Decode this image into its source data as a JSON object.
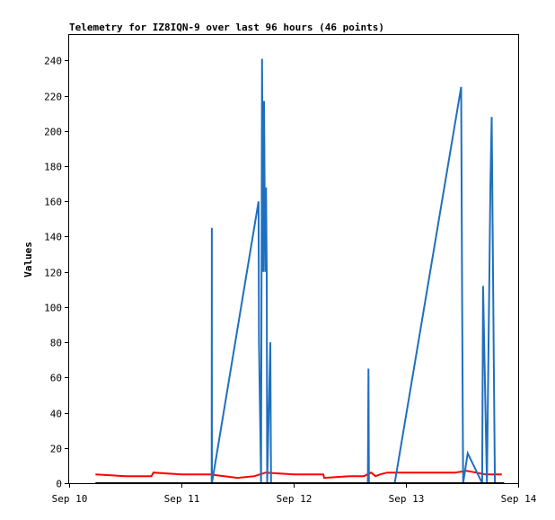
{
  "chart_data": {
    "type": "line",
    "title": "Telemetry for IZ8IQN-9 over last 96 hours (46 points)",
    "xlabel": "",
    "ylabel": "Values",
    "x_ticks": [
      "Sep 10",
      "Sep 11",
      "Sep 12",
      "Sep 13",
      "Sep 14"
    ],
    "xlim": [
      "2023-09-10 00:00",
      "2023-09-14 00:00"
    ],
    "ylim": [
      0,
      255
    ],
    "y_ticks": [
      0,
      20,
      40,
      60,
      80,
      100,
      120,
      140,
      160,
      180,
      200,
      220,
      240
    ],
    "grid": false,
    "series": [
      {
        "color": "#ff0000",
        "x": [
          "2023-09-10 05:37",
          "2023-09-10 12:00",
          "2023-09-10 17:36",
          "2023-09-10 18:00",
          "2023-09-11 00:00",
          "2023-09-11 06:00",
          "2023-09-11 12:00",
          "2023-09-11 15:36",
          "2023-09-11 18:00",
          "2023-09-12 00:00",
          "2023-09-12 03:00",
          "2023-09-12 06:20",
          "2023-09-12 06:30",
          "2023-09-12 12:00",
          "2023-09-12 15:00",
          "2023-09-12 16:34",
          "2023-09-12 17:30",
          "2023-09-12 18:30",
          "2023-09-12 20:00",
          "2023-09-13 00:00",
          "2023-09-13 06:00",
          "2023-09-13 10:30",
          "2023-09-13 13:00",
          "2023-09-13 15:00",
          "2023-09-13 17:00",
          "2023-09-13 20:30"
        ],
        "values": [
          5,
          4,
          4,
          6,
          5,
          5,
          3,
          4,
          6,
          5,
          5,
          5,
          3,
          4,
          4,
          6,
          4,
          5,
          6,
          6,
          6,
          6,
          7,
          6,
          5,
          5
        ]
      },
      {
        "color": "#1f6fbf",
        "x": [
          "2023-09-11 06:28",
          "2023-09-11 06:30",
          "2023-09-11 06:31",
          "2023-09-11 06:32",
          "2023-09-11 16:29",
          "2023-09-11 16:35",
          "2023-09-11 17:02",
          "2023-09-11 17:15",
          "2023-09-11 17:28",
          "2023-09-11 17:40",
          "2023-09-11 17:55",
          "2023-09-11 18:05",
          "2023-09-11 18:14",
          "2023-09-11 18:20",
          "2023-09-11 19:00",
          "2023-09-11 19:10",
          "2023-09-12 15:52",
          "2023-09-12 16:00",
          "2023-09-12 16:05",
          "2023-09-12 21:36",
          "2023-09-13 11:48",
          "2023-09-13 12:00",
          "2023-09-13 12:14",
          "2023-09-13 13:12",
          "2023-09-13 16:18",
          "2023-09-13 16:30",
          "2023-09-13 17:19",
          "2023-09-13 18:04",
          "2023-09-13 18:20",
          "2023-09-13 18:50",
          "2023-09-13 19:02"
        ],
        "values": [
          0,
          145,
          73,
          0,
          160,
          80,
          0,
          241,
          120,
          217,
          120,
          168,
          120,
          0,
          80,
          0,
          0,
          65,
          0,
          0,
          225,
          112,
          0,
          17,
          0,
          112,
          0,
          170,
          208,
          54,
          0
        ]
      },
      {
        "color": "#000000",
        "x": [
          "2023-09-10 05:37",
          "2023-09-13 21:00"
        ],
        "values": [
          0,
          0
        ]
      }
    ]
  }
}
